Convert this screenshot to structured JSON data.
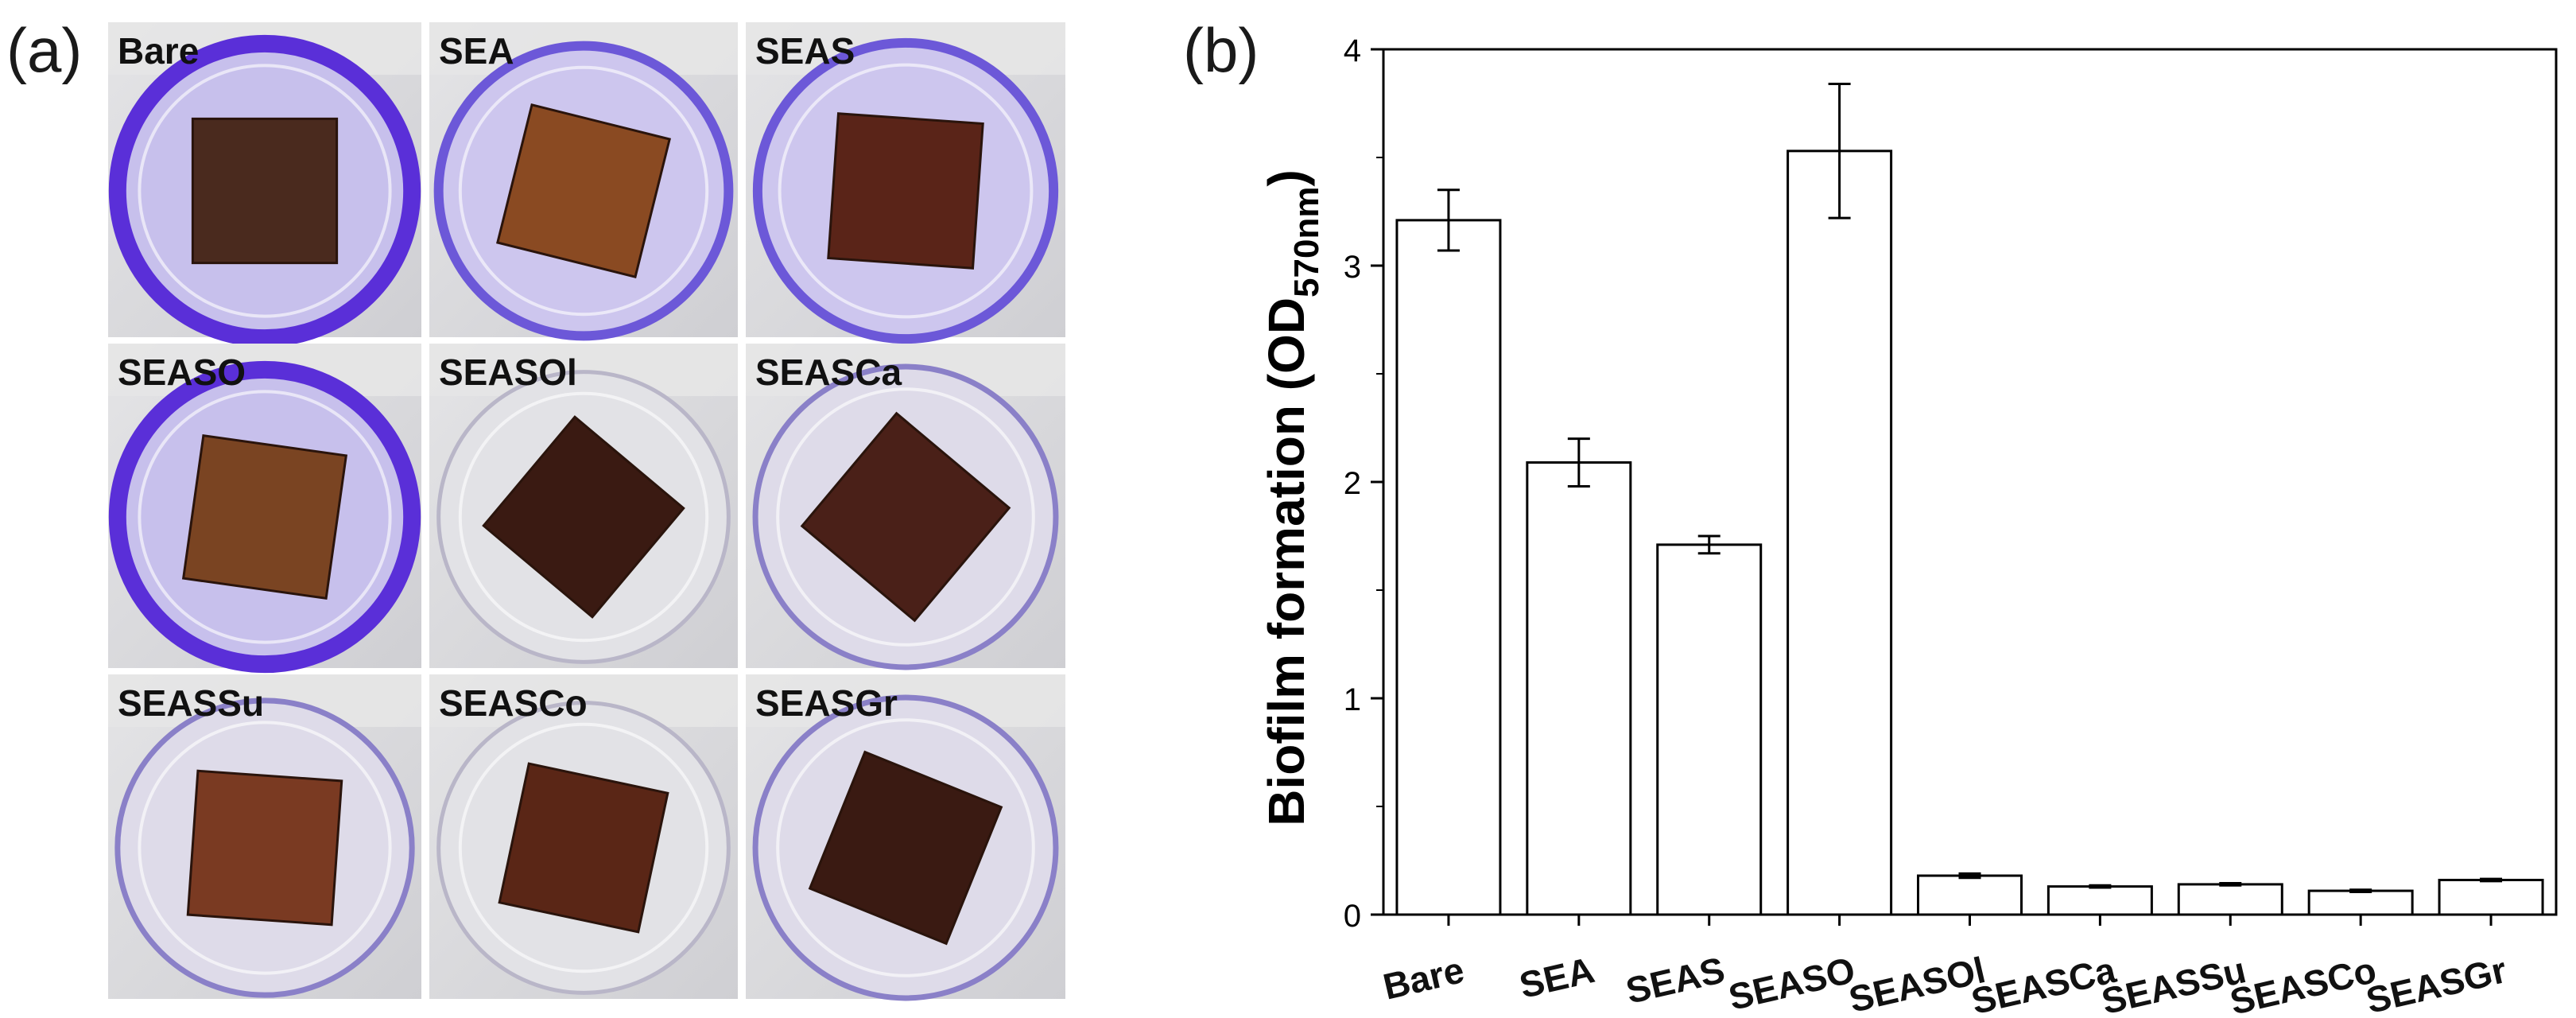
{
  "panel_a": {
    "label": "(a)",
    "wells": [
      {
        "name": "Bare",
        "stain": "heavy",
        "rot": 0,
        "tone": "#4a2a1e"
      },
      {
        "name": "SEA",
        "stain": "medium",
        "rot": 14,
        "tone": "#8a4a22"
      },
      {
        "name": "SEAS",
        "stain": "medium",
        "rot": 4,
        "tone": "#5a2418"
      },
      {
        "name": "SEASO",
        "stain": "heavy",
        "rot": 8,
        "tone": "#7a4422"
      },
      {
        "name": "SEASOl",
        "stain": "none",
        "rot": 40,
        "tone": "#3a1a12"
      },
      {
        "name": "SEASCa",
        "stain": "light",
        "rot": 40,
        "tone": "#4a2018"
      },
      {
        "name": "SEASSu",
        "stain": "light",
        "rot": 4,
        "tone": "#7a3a22"
      },
      {
        "name": "SEASCo",
        "stain": "none",
        "rot": 12,
        "tone": "#5a2616"
      },
      {
        "name": "SEASGr",
        "stain": "light",
        "rot": 22,
        "tone": "#3a1a12"
      }
    ]
  },
  "panel_b": {
    "label": "(b)"
  },
  "chart_data": {
    "type": "bar",
    "title": "",
    "xlabel": "",
    "ylabel_main": "Biofilm formation (OD",
    "ylabel_sub": "570nm",
    "ylabel_close": ")",
    "categories": [
      "Bare",
      "SEA",
      "SEAS",
      "SEASO",
      "SEASOl",
      "SEASCa",
      "SEASSu",
      "SEASCo",
      "SEASGr"
    ],
    "values": [
      3.21,
      2.09,
      1.71,
      3.53,
      0.18,
      0.13,
      0.14,
      0.11,
      0.16
    ],
    "errors": [
      0.14,
      0.11,
      0.04,
      0.31,
      0.01,
      0.005,
      0.005,
      0.005,
      0.005
    ],
    "ylim": [
      0,
      4
    ],
    "yticks": [
      0,
      1,
      2,
      3,
      4
    ],
    "grid": false,
    "colors": {
      "bar_fill": "#ffffff",
      "bar_edge": "#000000",
      "axis": "#000000"
    }
  }
}
